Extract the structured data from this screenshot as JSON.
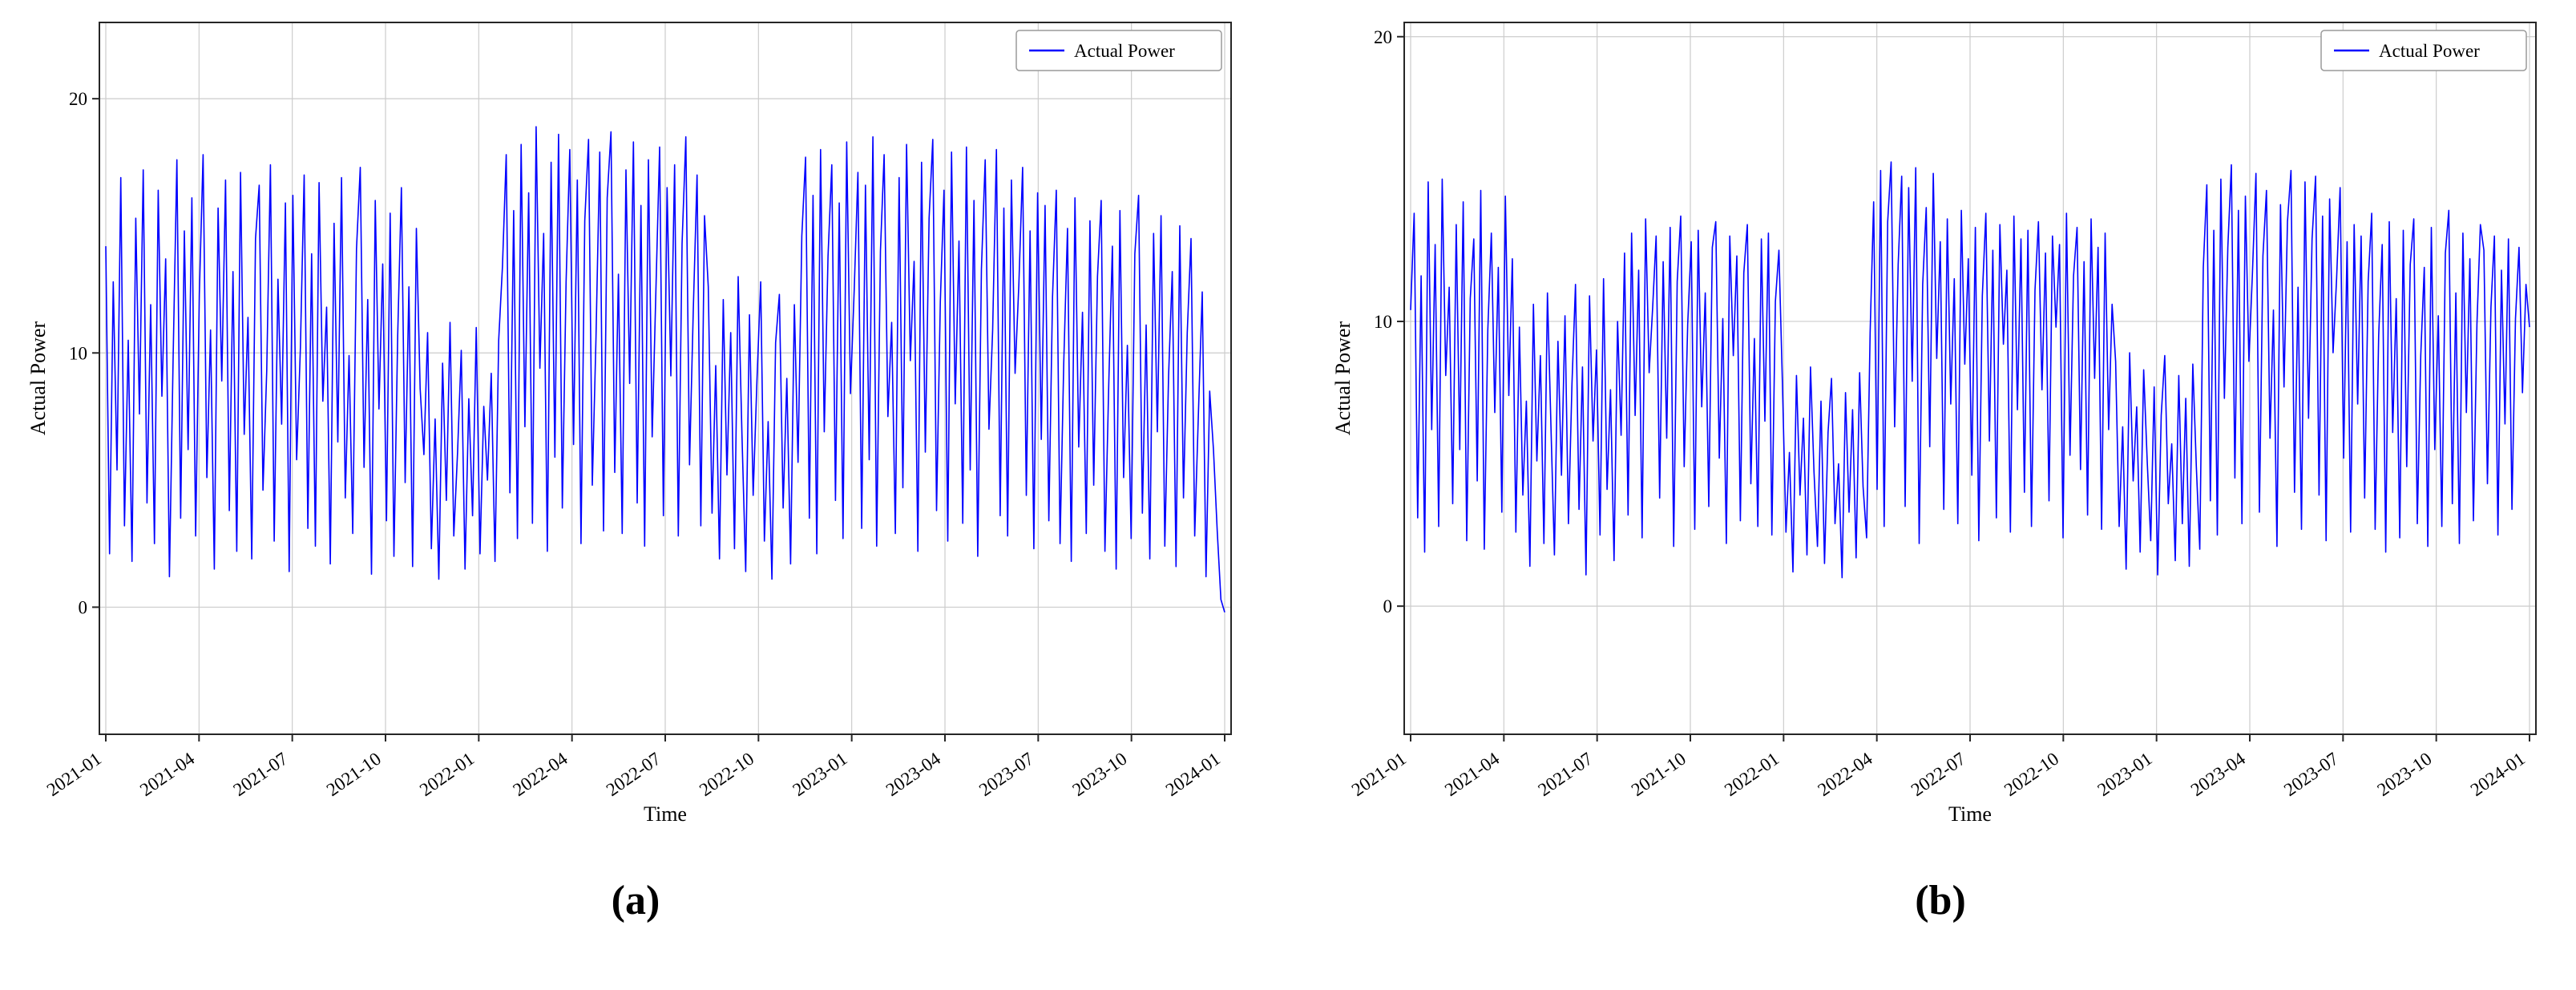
{
  "page": {
    "background": "#ffffff",
    "grid_color": "#cccccc",
    "axis_color": "#262626",
    "text_color": "#000000"
  },
  "chart_data": [
    {
      "type": "line",
      "title": "",
      "caption": "(a)",
      "xlabel": "Time",
      "ylabel": "Actual Power",
      "legend": [
        "Actual Power"
      ],
      "legend_position": "upper right",
      "line_color": "#0000ff",
      "grid": true,
      "x_start": "2021-01",
      "x_end": "2024-01",
      "xticklabels": [
        "2021-01",
        "2021-04",
        "2021-07",
        "2021-10",
        "2022-01",
        "2022-04",
        "2022-07",
        "2022-10",
        "2023-01",
        "2023-04",
        "2023-07",
        "2023-10",
        "2024-01"
      ],
      "yticks": [
        0,
        10,
        20
      ],
      "ylim": [
        -5,
        23
      ],
      "series": [
        {
          "name": "Actual Power",
          "values": [
            14.2,
            2.1,
            12.8,
            5.4,
            16.9,
            3.2,
            10.5,
            1.8,
            15.3,
            7.6,
            17.2,
            4.1,
            11.9,
            2.5,
            16.4,
            8.3,
            13.7,
            1.2,
            9.8,
            17.6,
            3.5,
            14.8,
            6.2,
            16.1,
            2.8,
            12.3,
            17.8,
            5.1,
            10.9,
            1.5,
            15.7,
            8.9,
            16.8,
            3.8,
            13.2,
            2.2,
            17.1,
            6.8,
            11.4,
            1.9,
            14.5,
            16.6,
            4.6,
            9.3,
            17.4,
            2.6,
            12.9,
            7.2,
            15.9,
            1.4,
            16.2,
            5.8,
            10.2,
            17.0,
            3.1,
            13.9,
            2.4,
            16.7,
            8.1,
            11.8,
            1.7,
            15.1,
            6.5,
            16.9,
            4.3,
            9.9,
            2.9,
            14.1,
            17.3,
            5.5,
            12.1,
            1.3,
            16.0,
            7.8,
            13.5,
            3.4,
            15.5,
            2.0,
            10.7,
            16.5,
            4.9,
            12.6,
            1.6,
            14.9,
            8.6,
            6.0,
            10.8,
            2.3,
            7.4,
            1.1,
            9.6,
            4.2,
            11.2,
            2.8,
            6.1,
            10.1,
            1.5,
            8.2,
            3.6,
            11.0,
            2.1,
            7.9,
            5.0,
            9.2,
            1.8,
            10.5,
            13.4,
            17.8,
            4.5,
            15.6,
            2.7,
            18.2,
            7.1,
            16.3,
            3.3,
            18.9,
            9.4,
            14.7,
            2.2,
            17.5,
            5.9,
            18.6,
            3.9,
            12.8,
            18.0,
            6.4,
            16.8,
            2.5,
            15.2,
            18.4,
            4.8,
            10.6,
            17.9,
            3.0,
            16.1,
            18.7,
            5.3,
            13.1,
            2.9,
            17.2,
            8.8,
            18.3,
            4.1,
            15.8,
            2.4,
            17.6,
            6.7,
            12.4,
            18.1,
            3.6,
            16.5,
            9.1,
            17.4,
            2.8,
            14.3,
            18.5,
            5.6,
            11.7,
            17.0,
            3.2,
            15.4,
            12.6,
            3.7,
            9.5,
            1.9,
            12.1,
            5.2,
            10.8,
            2.3,
            13.0,
            6.8,
            1.4,
            11.5,
            4.4,
            8.9,
            12.8,
            2.6,
            7.3,
            1.1,
            10.4,
            12.3,
            3.9,
            9.0,
            1.7,
            11.9,
            5.7,
            14.6,
            17.7,
            3.5,
            16.2,
            2.1,
            18.0,
            6.9,
            13.8,
            17.4,
            4.2,
            15.9,
            2.7,
            18.3,
            8.4,
            12.5,
            17.1,
            3.1,
            16.6,
            5.8,
            18.5,
            2.4,
            14.0,
            17.8,
            7.5,
            11.2,
            2.9,
            16.9,
            4.7,
            18.2,
            9.7,
            13.6,
            2.2,
            17.5,
            6.1,
            15.3,
            18.4,
            3.8,
            12.0,
            16.4,
            2.6,
            17.9,
            8.0,
            14.4,
            3.3,
            18.1,
            5.4,
            16.0,
            2.0,
            13.3,
            17.6,
            7.0,
            10.9,
            18.0,
            3.6,
            15.7,
            2.8,
            16.8,
            9.2,
            12.7,
            17.3,
            4.4,
            14.8,
            2.3,
            16.3,
            6.6,
            15.8,
            3.4,
            12.2,
            16.4,
            2.5,
            9.6,
            14.9,
            1.8,
            16.1,
            6.3,
            11.6,
            2.9,
            15.2,
            4.8,
            13.0,
            16.0,
            2.2,
            8.7,
            14.2,
            1.5,
            15.6,
            5.1,
            10.3,
            2.7,
            13.9,
            16.2,
            3.7,
            11.1,
            1.9,
            14.7,
            6.9,
            15.4,
            2.4,
            9.1,
            13.2,
            1.6,
            15.0,
            4.3,
            10.8,
            14.5,
            2.8,
            7.7,
            12.4,
            1.2,
            8.5,
            6.2,
            3.0,
            0.3,
            -0.2
          ]
        }
      ]
    },
    {
      "type": "line",
      "title": "",
      "caption": "(b)",
      "xlabel": "Time",
      "ylabel": "Actual Power",
      "legend": [
        "Actual Power"
      ],
      "legend_position": "upper right",
      "line_color": "#0000ff",
      "grid": true,
      "x_start": "2021-01",
      "x_end": "2024-01",
      "xticklabels": [
        "2021-01",
        "2021-04",
        "2021-07",
        "2021-10",
        "2022-01",
        "2022-04",
        "2022-07",
        "2022-10",
        "2023-01",
        "2023-04",
        "2023-07",
        "2023-10",
        "2024-01"
      ],
      "yticks": [
        0,
        10,
        20
      ],
      "ylim": [
        -4.5,
        20.5
      ],
      "series": [
        {
          "name": "Actual Power",
          "values": [
            10.4,
            13.8,
            3.1,
            11.6,
            1.9,
            14.9,
            6.2,
            12.7,
            2.8,
            15.0,
            8.1,
            11.2,
            3.6,
            13.4,
            5.5,
            14.2,
            2.3,
            10.8,
            12.9,
            4.4,
            14.6,
            2.0,
            9.7,
            13.1,
            6.8,
            11.9,
            3.3,
            14.4,
            7.4,
            12.2,
            2.6,
            9.8,
            3.9,
            7.2,
            1.4,
            10.6,
            5.1,
            8.8,
            2.2,
            11.0,
            6.4,
            1.8,
            9.3,
            4.6,
            10.2,
            2.9,
            7.8,
            11.3,
            3.4,
            8.4,
            1.1,
            10.9,
            5.8,
            9.0,
            2.5,
            11.5,
            4.1,
            7.6,
            1.6,
            10.0,
            6.0,
            12.4,
            3.2,
            13.1,
            6.7,
            11.8,
            2.4,
            13.6,
            8.2,
            10.5,
            13.0,
            3.8,
            12.1,
            5.9,
            13.3,
            2.1,
            11.4,
            13.7,
            4.9,
            9.9,
            12.8,
            2.7,
            13.2,
            7.0,
            11.0,
            3.5,
            12.6,
            13.5,
            5.2,
            10.1,
            2.2,
            13.0,
            8.8,
            12.3,
            3.0,
            11.7,
            13.4,
            4.3,
            9.4,
            2.8,
            12.9,
            6.5,
            13.1,
            2.5,
            10.7,
            12.5,
            7.8,
            2.6,
            5.4,
            1.2,
            8.1,
            3.9,
            6.6,
            1.8,
            8.4,
            4.7,
            2.1,
            7.2,
            1.5,
            6.1,
            8.0,
            2.9,
            5.0,
            1.0,
            7.5,
            3.3,
            6.9,
            1.7,
            8.2,
            4.2,
            2.4,
            9.6,
            14.2,
            4.1,
            15.3,
            2.8,
            13.5,
            15.6,
            6.3,
            12.0,
            15.1,
            3.5,
            14.7,
            7.9,
            15.4,
            2.2,
            11.3,
            14.0,
            5.6,
            15.2,
            8.7,
            12.8,
            3.4,
            13.6,
            7.1,
            11.5,
            2.9,
            13.9,
            8.5,
            12.2,
            4.6,
            13.3,
            2.3,
            10.9,
            13.8,
            5.8,
            12.5,
            3.1,
            13.4,
            9.2,
            11.8,
            2.6,
            13.7,
            6.9,
            12.9,
            4.0,
            13.2,
            2.8,
            11.1,
            13.5,
            7.6,
            12.4,
            3.7,
            13.0,
            9.8,
            12.7,
            2.4,
            13.8,
            5.3,
            11.6,
            13.3,
            4.8,
            12.1,
            3.2,
            13.6,
            8.0,
            12.6,
            2.7,
            13.1,
            6.2,
            10.6,
            8.6,
            2.8,
            6.3,
            1.3,
            8.9,
            4.4,
            7.0,
            1.9,
            8.3,
            5.1,
            2.3,
            7.7,
            1.1,
            6.7,
            8.8,
            3.6,
            5.7,
            1.6,
            8.1,
            2.9,
            7.3,
            1.4,
            8.5,
            4.9,
            2.0,
            11.9,
            14.8,
            3.7,
            13.2,
            2.5,
            15.0,
            7.3,
            12.6,
            15.5,
            4.5,
            13.9,
            2.9,
            14.4,
            8.6,
            11.7,
            15.2,
            3.3,
            12.3,
            14.6,
            5.9,
            10.4,
            2.1,
            14.1,
            7.7,
            13.5,
            15.3,
            4.0,
            11.2,
            2.7,
            14.9,
            6.6,
            12.9,
            15.1,
            3.9,
            13.7,
            2.3,
            14.3,
            8.9,
            11.5,
            14.7,
            5.2,
            12.8,
            2.6,
            13.4,
            7.1,
            13.0,
            3.8,
            11.4,
            13.8,
            2.7,
            9.5,
            12.7,
            1.9,
            13.5,
            6.1,
            10.8,
            2.4,
            13.2,
            4.9,
            12.0,
            13.6,
            2.9,
            8.8,
            11.9,
            2.1,
            13.3,
            5.5,
            10.2,
            2.8,
            12.4,
            13.9,
            3.6,
            11.0,
            2.2,
            13.1,
            6.8,
            12.2,
            3.0,
            9.9,
            13.4,
            12.5,
            4.3,
            10.5,
            13.0,
            2.5,
            11.8,
            6.4,
            12.9,
            3.4,
            10.1,
            12.6,
            7.5,
            11.3,
            9.8
          ]
        }
      ]
    }
  ]
}
